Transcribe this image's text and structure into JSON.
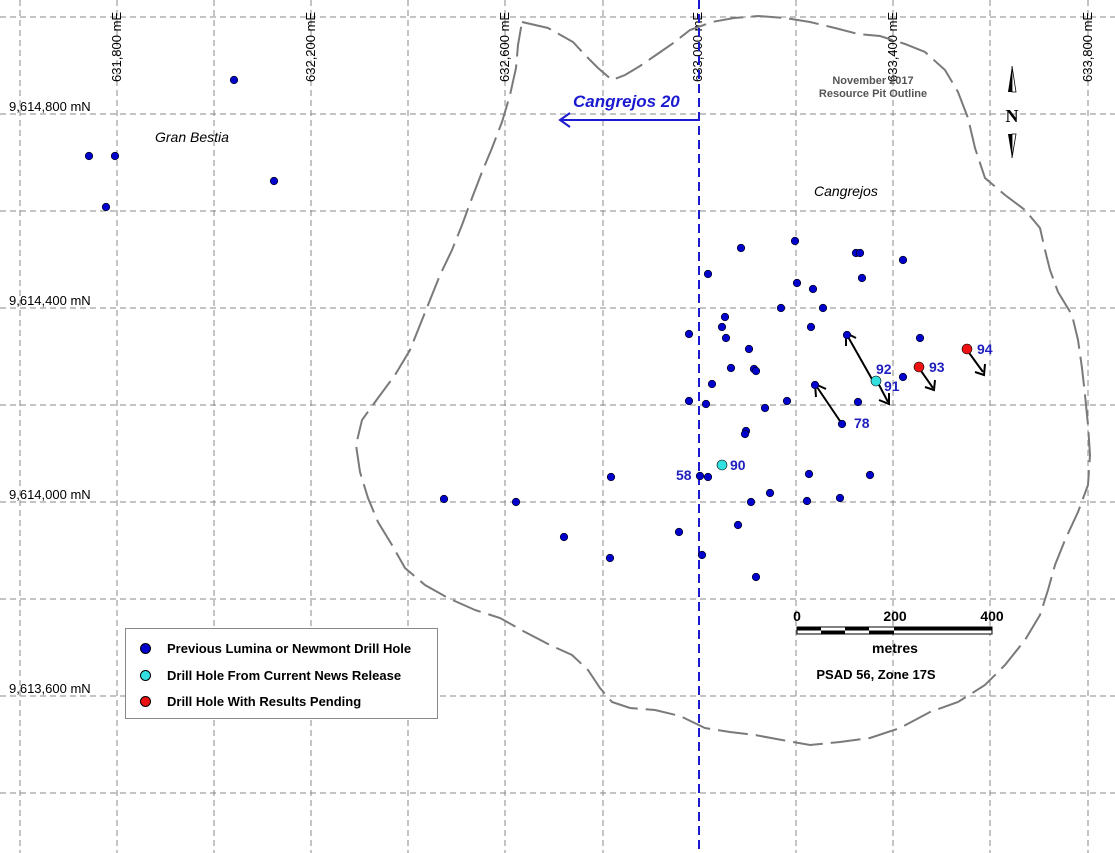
{
  "map": {
    "easting_labels": [
      "631,800 mE",
      "632,200 mE",
      "632,600 mE",
      "633,000 mE",
      "633,400 mE",
      "633,800 mE"
    ],
    "northing_labels": [
      "9,614,800 mN",
      "9,614,400 mN",
      "9,614,000 mN",
      "9,613,600 mN"
    ],
    "area_labels": {
      "gran_bestia": "Gran Bestia",
      "cangrejos": "Cangrejos",
      "cangrejos20": "Cangrejos 20",
      "pit_outline_line1": "November 2017",
      "pit_outline_line2": "Resource Pit Outline"
    },
    "hole_labels": [
      "58",
      "90",
      "78",
      "91",
      "92",
      "93",
      "94"
    ],
    "scale_bar": {
      "ticks": [
        "0",
        "200",
        "400"
      ],
      "unit": "metres",
      "projection": "PSAD 56, Zone 17S"
    },
    "north_arrow": "N"
  },
  "legend": {
    "items": [
      {
        "label": "Previous Lumina or Newmont Drill Hole",
        "color": "#0000cc"
      },
      {
        "label": "Drill Hole From Current News Release",
        "color": "#33e0e0"
      },
      {
        "label": "Drill Hole With Results Pending",
        "color": "#ee1111"
      }
    ]
  },
  "colors": {
    "previous_hole": "#0000cc",
    "current_hole": "#33e0e0",
    "pending_hole": "#ee1111",
    "label_blue": "#1f1fbf",
    "pit_outline": "#7a7a7a"
  }
}
